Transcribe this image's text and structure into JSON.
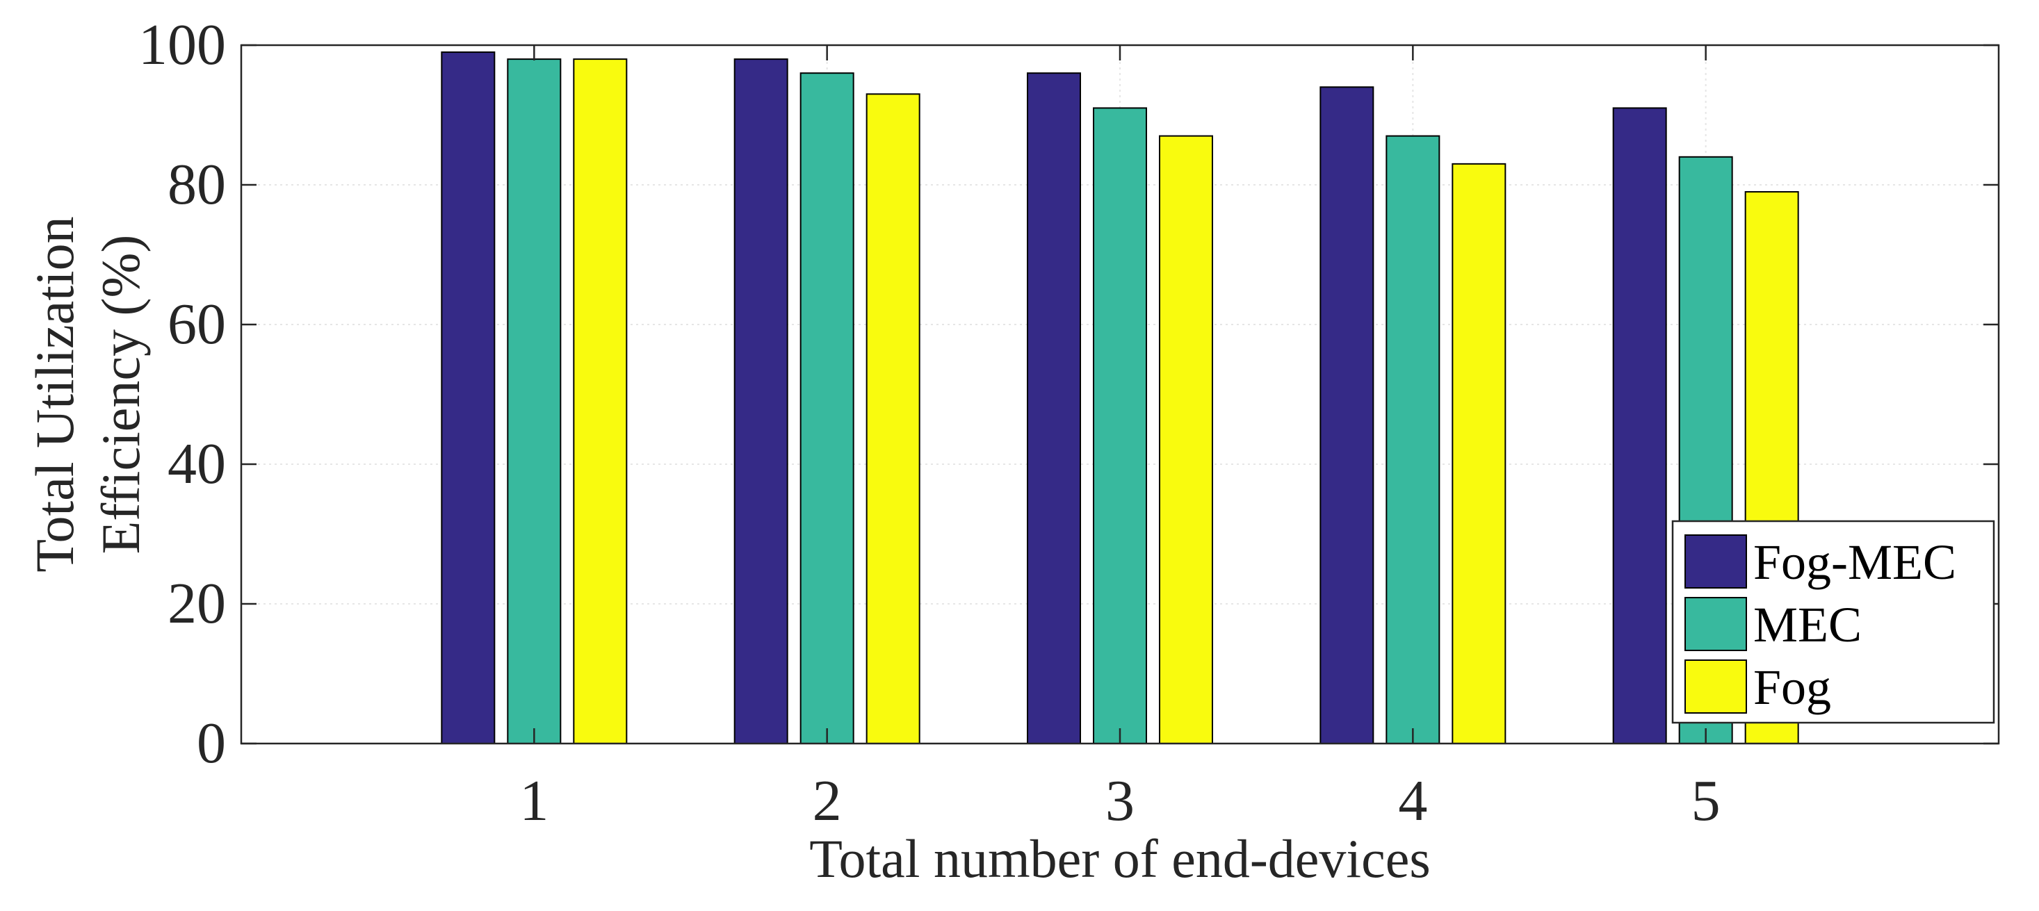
{
  "chart_data": {
    "type": "bar",
    "xlabel": "Total number of end-devices",
    "ylabel_lines": [
      "Total Utilization",
      "Efficiency (%)"
    ],
    "categories": [
      "1",
      "2",
      "3",
      "4",
      "5"
    ],
    "ylim": [
      0,
      100
    ],
    "yticks": [
      "0",
      "20",
      "40",
      "60",
      "80",
      "100"
    ],
    "grid": true,
    "legend_position": "bottom-right",
    "series": [
      {
        "name": "Fog-MEC",
        "color": "#352a87",
        "values": [
          99,
          98,
          96,
          94,
          91
        ]
      },
      {
        "name": "MEC",
        "color": "#38b99e",
        "values": [
          98,
          96,
          91,
          87,
          84
        ]
      },
      {
        "name": "Fog",
        "color": "#f9fb0e",
        "values": [
          98,
          93,
          87,
          83,
          79
        ]
      }
    ]
  }
}
